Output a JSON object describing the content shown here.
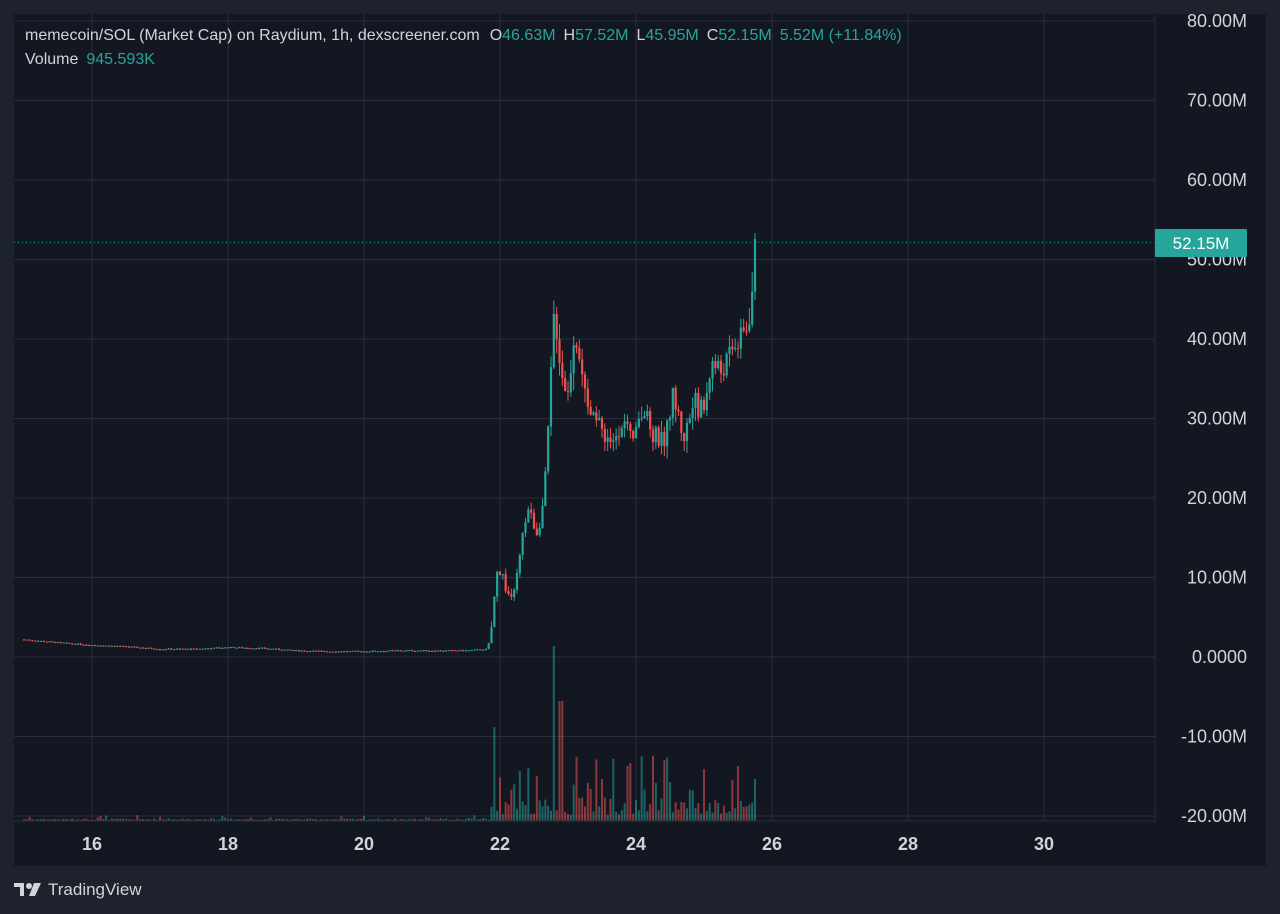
{
  "legend": {
    "title": "memecoin/SOL (Market Cap) on Raydium, 1h, dexscreener.com",
    "open_label": "O",
    "open": "46.63M",
    "high_label": "H",
    "high": "57.52M",
    "low_label": "L",
    "low": "45.95M",
    "close_label": "C",
    "close": "52.15M",
    "change": "5.52M (+11.84%)",
    "volume_label": "Volume",
    "volume": "945.593K"
  },
  "price_tag": "52.15M",
  "footer": {
    "brand": "TradingView",
    "logo_icon": "tradingview-logo-icon"
  },
  "colors": {
    "up": "#26a69a",
    "down": "#ef5350",
    "background": "#131722",
    "grid": "#2a2e39",
    "text": "#d1d4dc"
  },
  "chart_data": {
    "type": "candlestick",
    "pair": "memecoin/SOL",
    "interval": "1h",
    "x_unit": "day of month",
    "y_unit": "market cap (M)",
    "ylim": [
      -20,
      80
    ],
    "y_ticks": [
      80,
      70,
      60,
      50,
      40,
      30,
      20,
      10,
      0,
      -10,
      -20
    ],
    "y_tick_labels": [
      "80.00M",
      "70.00M",
      "60.00M",
      "50.00M",
      "40.00M",
      "30.00M",
      "20.00M",
      "10.00M",
      "0.0000",
      "-10.00M",
      "-20.00M"
    ],
    "xlim": [
      14.9,
      31.8
    ],
    "x_ticks": [
      16,
      18,
      20,
      22,
      24,
      26,
      28,
      30
    ],
    "x_tick_labels": [
      "16",
      "18",
      "20",
      "22",
      "24",
      "26",
      "28",
      "30"
    ],
    "last_price": 52.15,
    "grid": true,
    "price_path": [
      [
        15.0,
        2.2
      ],
      [
        15.5,
        1.8
      ],
      [
        16.0,
        1.5
      ],
      [
        16.5,
        1.3
      ],
      [
        17.0,
        1.0
      ],
      [
        17.5,
        1.0
      ],
      [
        18.0,
        1.2
      ],
      [
        18.5,
        1.1
      ],
      [
        19.0,
        0.8
      ],
      [
        19.5,
        0.7
      ],
      [
        20.0,
        0.7
      ],
      [
        20.5,
        0.8
      ],
      [
        21.0,
        0.8
      ],
      [
        21.5,
        0.8
      ],
      [
        21.82,
        1.0
      ],
      [
        21.88,
        4.0
      ],
      [
        21.95,
        10.5
      ],
      [
        22.02,
        11.0
      ],
      [
        22.1,
        8.0
      ],
      [
        22.2,
        7.5
      ],
      [
        22.3,
        13.0
      ],
      [
        22.4,
        19.0
      ],
      [
        22.55,
        15.5
      ],
      [
        22.65,
        20.0
      ],
      [
        22.72,
        30.0
      ],
      [
        22.8,
        44.0
      ],
      [
        22.9,
        36.0
      ],
      [
        23.0,
        33.0
      ],
      [
        23.1,
        42.0
      ],
      [
        23.2,
        35.0
      ],
      [
        23.35,
        30.0
      ],
      [
        23.5,
        28.5
      ],
      [
        23.65,
        27.0
      ],
      [
        23.8,
        30.0
      ],
      [
        23.95,
        26.5
      ],
      [
        24.1,
        31.0
      ],
      [
        24.25,
        28.0
      ],
      [
        24.4,
        27.0
      ],
      [
        24.55,
        33.0
      ],
      [
        24.7,
        27.5
      ],
      [
        24.85,
        32.0
      ],
      [
        25.0,
        31.0
      ],
      [
        25.1,
        37.0
      ],
      [
        25.25,
        36.0
      ],
      [
        25.4,
        38.0
      ],
      [
        25.55,
        40.0
      ],
      [
        25.65,
        42.0
      ],
      [
        25.72,
        47.0
      ],
      [
        25.76,
        52.15
      ]
    ],
    "volume_peaks": [
      [
        21.92,
        94
      ],
      [
        22.0,
        75
      ],
      [
        22.3,
        50
      ],
      [
        22.55,
        45
      ],
      [
        22.8,
        175
      ],
      [
        22.9,
        120
      ],
      [
        23.3,
        38
      ],
      [
        23.5,
        42
      ],
      [
        23.9,
        55
      ],
      [
        24.1,
        30
      ],
      [
        24.8,
        32
      ],
      [
        25.0,
        52
      ],
      [
        25.2,
        18
      ],
      [
        25.5,
        55
      ],
      [
        25.75,
        42
      ]
    ]
  }
}
